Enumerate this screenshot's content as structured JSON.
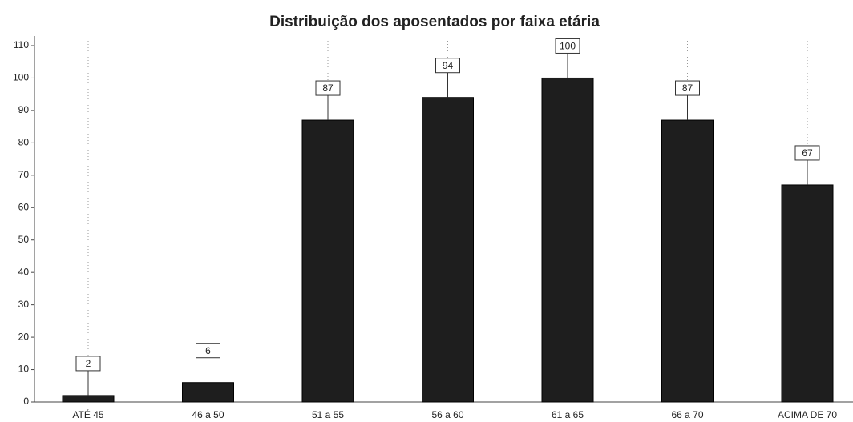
{
  "chart_data": {
    "type": "bar",
    "title": "Distribuição dos aposentados por faixa etária",
    "categories": [
      "ATÉ 45",
      "46 a 50",
      "51 a 55",
      "56 a 60",
      "61 a 65",
      "66 a 70",
      "ACIMA DE 70"
    ],
    "values": [
      2,
      6,
      87,
      94,
      100,
      87,
      67
    ],
    "color": "#1e1e1e",
    "ylim": [
      0,
      110
    ],
    "yticks": [
      0,
      10,
      20,
      30,
      40,
      50,
      60,
      70,
      80,
      90,
      100,
      110
    ],
    "grid": true
  }
}
